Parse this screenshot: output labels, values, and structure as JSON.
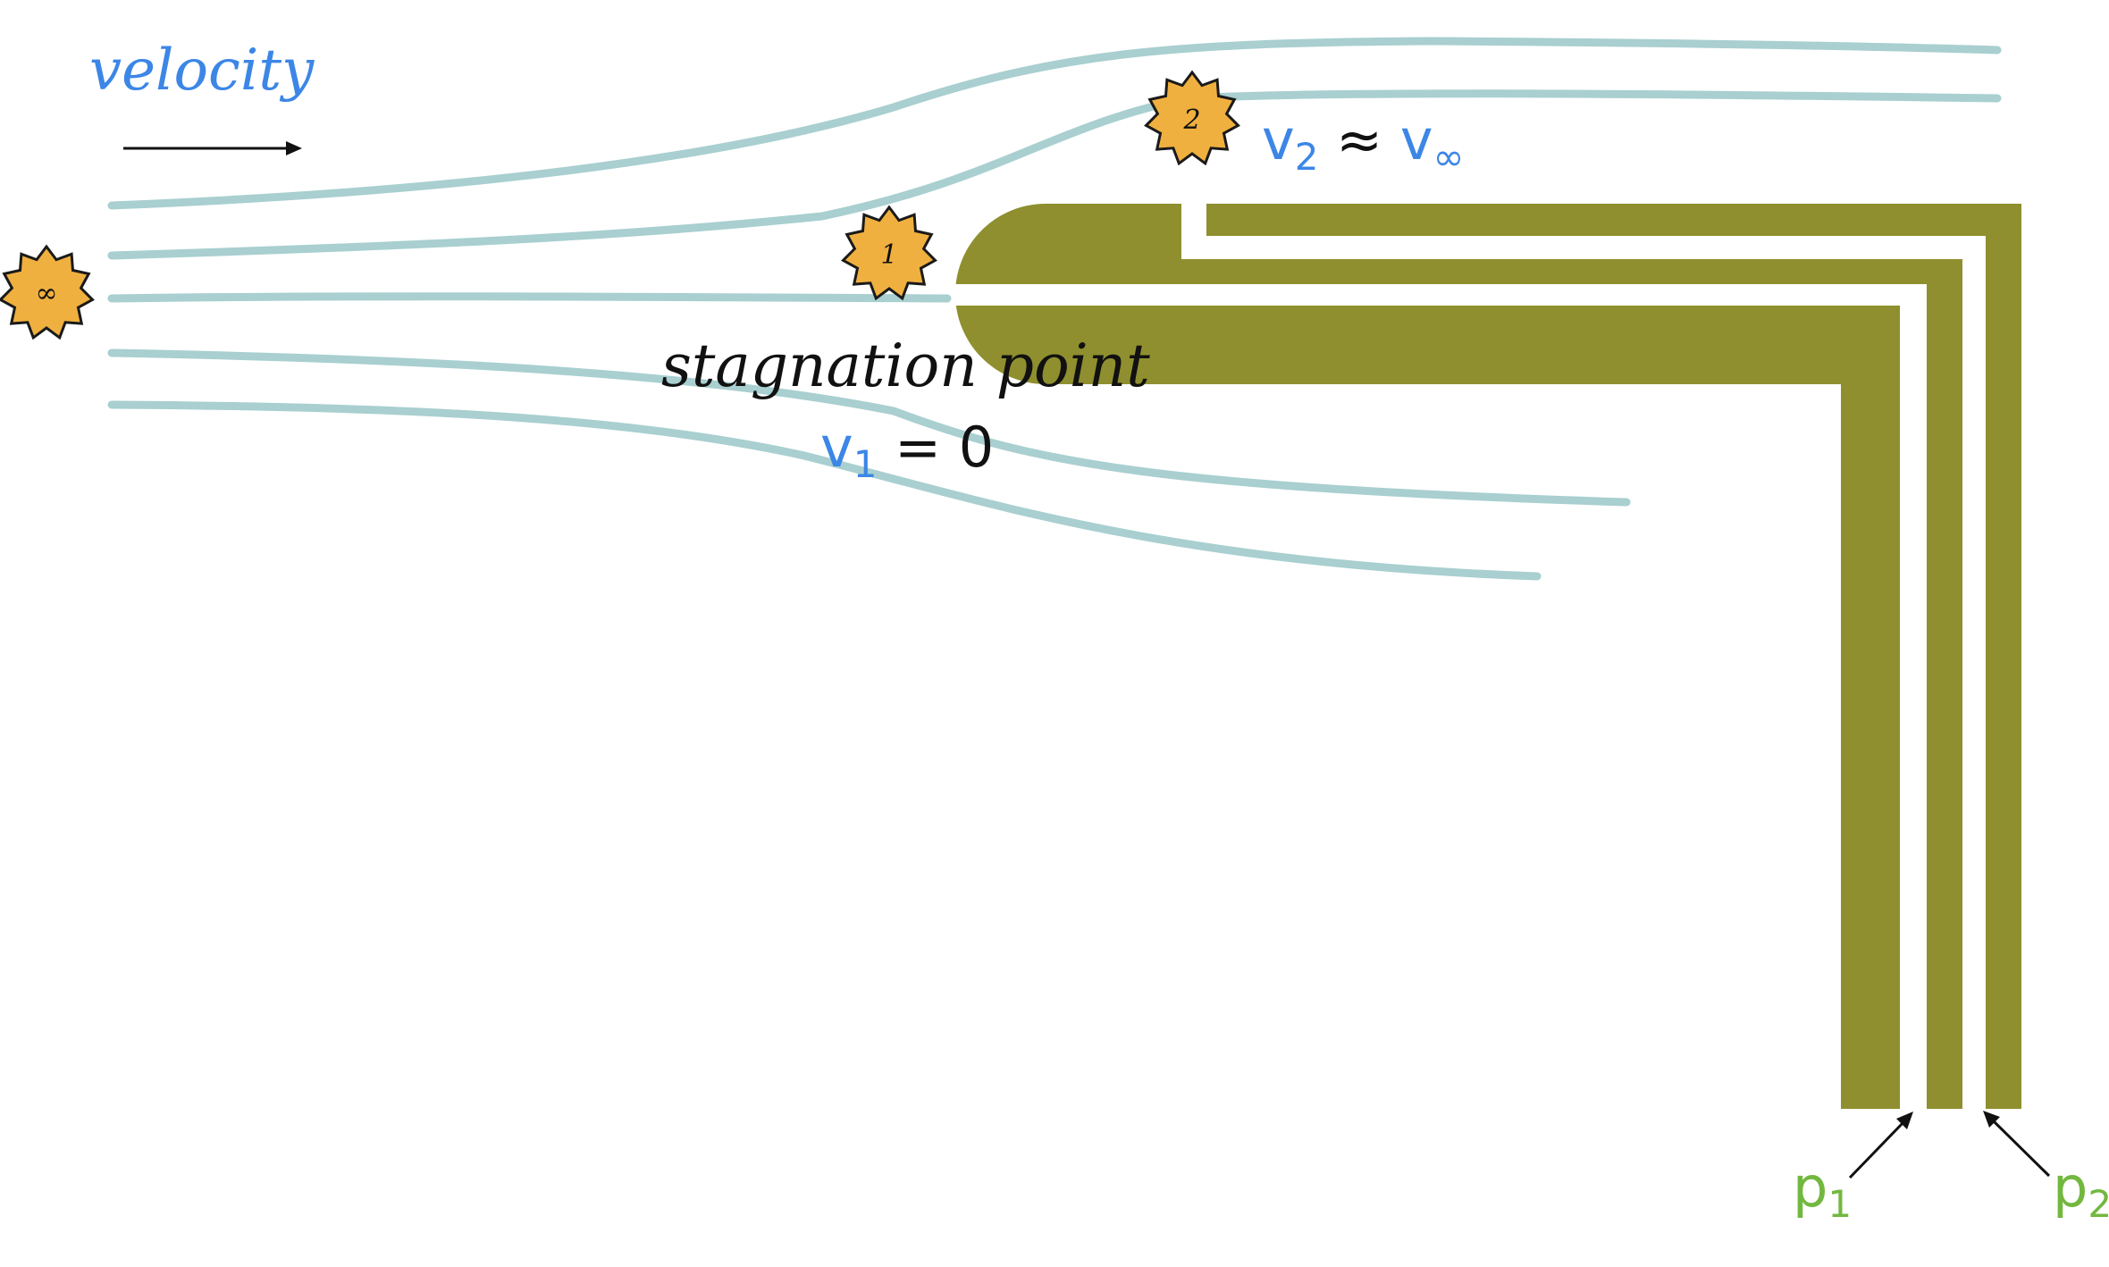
{
  "colors": {
    "streamline": "#a9cfd0",
    "tube": "#8f8f2f",
    "marker_fill": "#f0b03f",
    "marker_stroke": "#1a1a1a",
    "velocity_blue": "#3c86e6",
    "pressure_green": "#72b83f",
    "ink": "#111111"
  },
  "labels": {
    "velocity": "velocity",
    "stagnation": "stagnation point",
    "v1_symbol": "v",
    "v1_sub": "1",
    "v1_rest": " = 0",
    "v2_symbol": "v",
    "v2_sub": "2",
    "approx": " ≈ ",
    "vinf_symbol": "v",
    "vinf_sub": "∞",
    "p1_symbol": "p",
    "p1_sub": "1",
    "p2_symbol": "p",
    "p2_sub": "2"
  },
  "markers": {
    "infinity": "∞",
    "point1": "1",
    "point2": "2"
  }
}
